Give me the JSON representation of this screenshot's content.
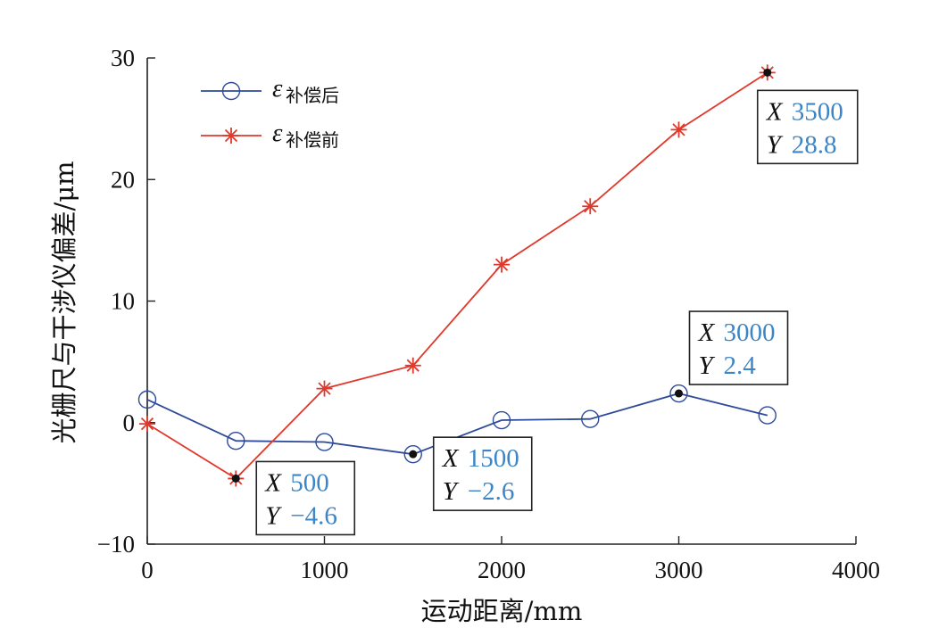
{
  "chart_data": {
    "type": "line",
    "xlabel": "运动距离/mm",
    "ylabel": "光栅尺与干涉仪偏差/μm",
    "xlim": [
      0,
      4000
    ],
    "ylim": [
      -10,
      30
    ],
    "x_ticks": [
      "0",
      "1000",
      "2000",
      "3000",
      "4000"
    ],
    "y_ticks": [
      "−10",
      "0",
      "10",
      "20",
      "30"
    ],
    "x": [
      0,
      500,
      1000,
      1500,
      2000,
      2500,
      3000,
      3500
    ],
    "legend_position": "top-left",
    "grid": false,
    "series": [
      {
        "name": "补偿后",
        "name_symbol": "ε",
        "color": "#2e4a9a",
        "marker": "circle",
        "values": [
          1.9,
          -1.5,
          -1.6,
          -2.6,
          0.2,
          0.3,
          2.4,
          0.6
        ]
      },
      {
        "name": "补偿前",
        "name_symbol": "ε",
        "color": "#e0392b",
        "marker": "asterisk",
        "values": [
          -0.1,
          -4.6,
          2.8,
          4.7,
          13.0,
          17.8,
          24.1,
          28.8
        ]
      }
    ],
    "datatips": [
      {
        "x_label": "X",
        "y_label": "Y",
        "x_value": "500",
        "y_value": "−4.6",
        "x": 500,
        "y": -4.6
      },
      {
        "x_label": "X",
        "y_label": "Y",
        "x_value": "1500",
        "y_value": "−2.6",
        "x": 1500,
        "y": -2.6
      },
      {
        "x_label": "X",
        "y_label": "Y",
        "x_value": "3000",
        "y_value": "2.4",
        "x": 3000,
        "y": 2.4
      },
      {
        "x_label": "X",
        "y_label": "Y",
        "x_value": "3500",
        "y_value": "28.8",
        "x": 3500,
        "y": 28.8
      }
    ]
  }
}
